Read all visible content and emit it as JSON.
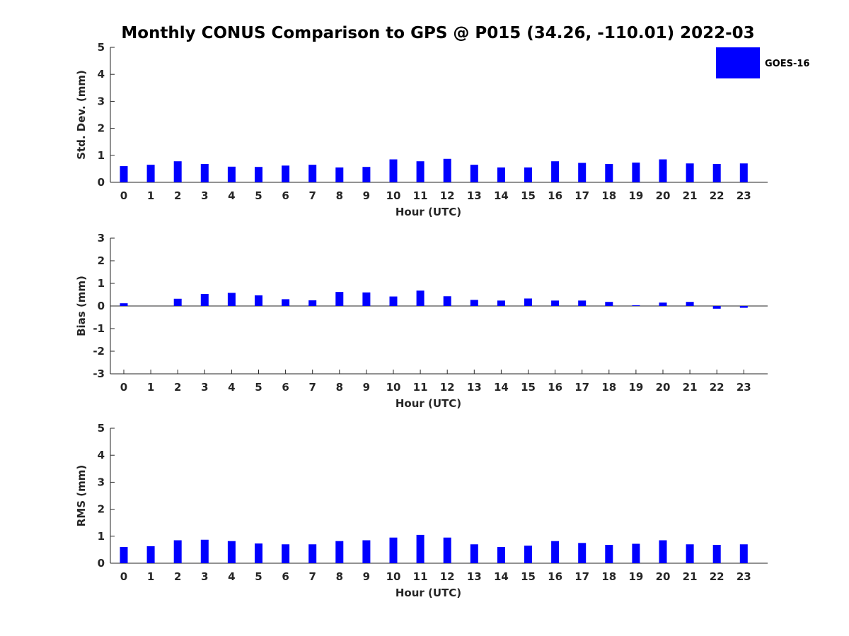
{
  "title": "Monthly CONUS Comparison to GPS @ P015 (34.26, -110.01) 2022-03",
  "legend": {
    "label": "GOES-16",
    "color": "#0000ff"
  },
  "chart_data": [
    {
      "type": "bar",
      "name": "std-dev",
      "series_name": "GOES-16",
      "categories": [
        "0",
        "1",
        "2",
        "3",
        "4",
        "5",
        "6",
        "7",
        "8",
        "9",
        "10",
        "11",
        "12",
        "13",
        "14",
        "15",
        "16",
        "17",
        "18",
        "19",
        "20",
        "21",
        "22",
        "23"
      ],
      "values": [
        0.6,
        0.65,
        0.78,
        0.68,
        0.58,
        0.57,
        0.62,
        0.65,
        0.55,
        0.57,
        0.85,
        0.78,
        0.87,
        0.65,
        0.55,
        0.55,
        0.78,
        0.72,
        0.68,
        0.73,
        0.85,
        0.7,
        0.68,
        0.7
      ],
      "xlabel": "Hour (UTC)",
      "ylabel": "Std. Dev. (mm)",
      "ylim": [
        0,
        5
      ],
      "yticks": [
        "0",
        "1",
        "2",
        "3",
        "4",
        "5"
      ],
      "grid": false
    },
    {
      "type": "bar",
      "name": "bias",
      "series_name": "GOES-16",
      "categories": [
        "0",
        "1",
        "2",
        "3",
        "4",
        "5",
        "6",
        "7",
        "8",
        "9",
        "10",
        "11",
        "12",
        "13",
        "14",
        "15",
        "16",
        "17",
        "18",
        "19",
        "20",
        "21",
        "22",
        "23"
      ],
      "values": [
        0.12,
        0.0,
        0.32,
        0.53,
        0.58,
        0.47,
        0.3,
        0.25,
        0.62,
        0.6,
        0.42,
        0.68,
        0.43,
        0.27,
        0.24,
        0.33,
        0.24,
        0.24,
        0.18,
        0.03,
        0.15,
        0.18,
        -0.12,
        -0.08
      ],
      "xlabel": "Hour (UTC)",
      "ylabel": "Bias (mm)",
      "ylim": [
        -3,
        3
      ],
      "yticks": [
        "-3",
        "-2",
        "-1",
        "0",
        "1",
        "2",
        "3"
      ],
      "grid": false
    },
    {
      "type": "bar",
      "name": "rms",
      "series_name": "GOES-16",
      "categories": [
        "0",
        "1",
        "2",
        "3",
        "4",
        "5",
        "6",
        "7",
        "8",
        "9",
        "10",
        "11",
        "12",
        "13",
        "14",
        "15",
        "16",
        "17",
        "18",
        "19",
        "20",
        "21",
        "22",
        "23"
      ],
      "values": [
        0.6,
        0.63,
        0.85,
        0.87,
        0.82,
        0.73,
        0.7,
        0.7,
        0.82,
        0.85,
        0.95,
        1.05,
        0.95,
        0.7,
        0.6,
        0.65,
        0.82,
        0.75,
        0.68,
        0.72,
        0.85,
        0.7,
        0.68,
        0.7
      ],
      "xlabel": "Hour (UTC)",
      "ylabel": "RMS (mm)",
      "ylim": [
        0,
        5
      ],
      "yticks": [
        "0",
        "1",
        "2",
        "3",
        "4",
        "5"
      ],
      "grid": false
    }
  ]
}
